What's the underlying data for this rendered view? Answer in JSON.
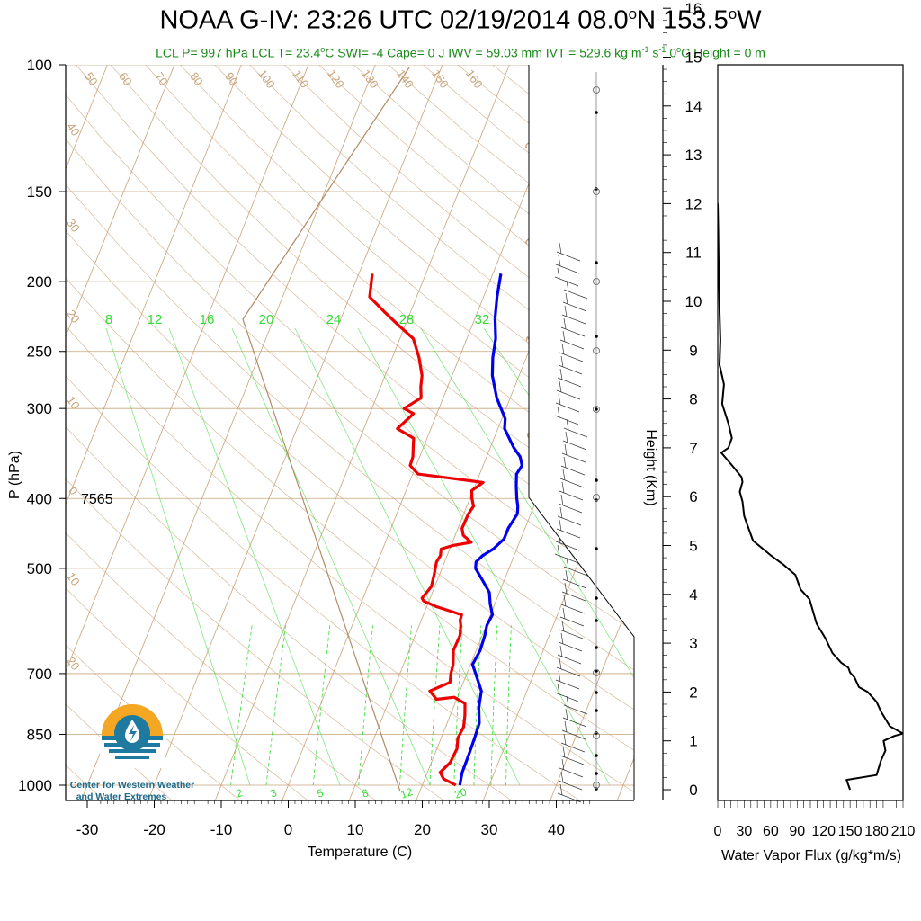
{
  "title_main": "NOAA G-IV: 23:26 UTC 02/19/2014  08.0",
  "title_deg1": "o",
  "title_lat": "N 153.5",
  "title_deg2": "o",
  "title_lon": "W",
  "subtitle": {
    "p1": "LCL P= 997 hPa  LCL T= 23.4",
    "deg1": "o",
    "p2": "C  SWI= -4  Cape= 0 J  IWV = 59.03 mm  IVT = 529.6 kg m",
    "sup1": "-1",
    "p3": " s",
    "sup2": "-1",
    "p4": "  0",
    "deg2": "o",
    "p5": "C Height = 0 m"
  },
  "colors": {
    "temperature": "#ee0000",
    "dewpoint": "#0000ee",
    "grid": "#c8a47a",
    "mixing": "#33dd33",
    "subtitle": "#1a8a1a"
  },
  "skewt": {
    "ylabel": "P (hPa)",
    "xlabel": "Temperature (C)",
    "pressure_ticks": [
      100,
      150,
      200,
      250,
      300,
      400,
      500,
      700,
      850,
      1000
    ],
    "temp_ticks": [
      -30,
      -20,
      -10,
      0,
      10,
      20,
      30,
      40
    ],
    "annotation": "7565",
    "mixing_ratio_labels": [
      "8",
      "12",
      "16",
      "20",
      "24",
      "28",
      "32"
    ],
    "mixing_ratio_labels_bottom": [
      "2",
      "3",
      "5",
      "8",
      "12",
      "20"
    ],
    "theta_labels_top": [
      "50",
      "60",
      "70",
      "80",
      "90",
      "100",
      "110",
      "120",
      "130",
      "140",
      "150",
      "160"
    ],
    "theta_labels_left": [
      "40",
      "30",
      "20",
      "10",
      "0",
      "10",
      "20"
    ],
    "isotherm_labels_right": [
      "30",
      "20",
      "10",
      "0",
      "10",
      "20",
      "30"
    ]
  },
  "chart_data": [
    {
      "type": "line",
      "title": "NOAA G-IV: 23:26 UTC 02/19/2014  08.0°N 153.5°W",
      "xlabel": "Temperature (C)",
      "ylabel": "P (hPa)",
      "yscale": "log",
      "xlim": [
        -35,
        50
      ],
      "ylim": [
        1000,
        100
      ],
      "series": [
        {
          "name": "Temperature",
          "color": "#ee0000",
          "x": [
            25.0,
            22.8,
            21.9,
            22.8,
            23.0,
            22.5,
            22.7,
            22.2,
            21.5,
            19.5,
            17.0,
            15.5,
            18.0,
            17.6,
            17.4,
            16.6,
            16.7,
            16.2,
            15.8,
            15.7,
            11.4,
            9.2,
            8.8,
            9.5,
            9.2,
            8.8,
            9.0,
            8.7,
            10.2,
            12.8,
            11.2,
            10.6,
            10.7,
            11.0,
            10.3,
            9.8,
            11.0,
            6.0,
            0.8,
            -0.9,
            -1.0,
            -1.5,
            -2.0,
            -5.0,
            -3.5,
            -5.2,
            -3.3,
            -4.0,
            -4.5,
            -6.0,
            -8.0,
            -11.0,
            -14.0,
            -17.0,
            -18.0
          ],
          "y": [
            1000,
            980,
            960,
            930,
            890,
            860,
            830,
            800,
            770,
            755,
            760,
            740,
            720,
            700,
            680,
            650,
            620,
            600,
            590,
            580,
            565,
            555,
            550,
            530,
            510,
            490,
            480,
            470,
            465,
            460,
            450,
            440,
            420,
            410,
            400,
            390,
            380,
            375,
            370,
            360,
            350,
            340,
            330,
            320,
            305,
            300,
            290,
            280,
            270,
            255,
            240,
            230,
            220,
            210,
            195
          ]
        },
        {
          "name": "Dewpoint",
          "color": "#0000ee",
          "x": [
            25.6,
            25.2,
            25.1,
            25.0,
            24.8,
            23.8,
            23.2,
            21.3,
            20.3,
            20.6,
            20.4,
            20.1,
            20.3,
            19.3,
            18.5,
            16.8,
            15.0,
            14.7,
            15.3,
            16.5,
            17.5,
            17.5,
            18.0,
            17.6,
            17.0,
            16.2,
            15.5,
            15.8,
            15.0,
            13.5,
            11.0,
            10.5,
            8.0,
            6.0,
            5.0,
            4.3,
            3.0,
            2.0,
            1.2
          ],
          "y": [
            1000,
            960,
            900,
            860,
            820,
            780,
            740,
            700,
            680,
            650,
            620,
            600,
            580,
            560,
            540,
            520,
            500,
            490,
            480,
            470,
            455,
            440,
            420,
            410,
            400,
            385,
            370,
            360,
            350,
            340,
            320,
            310,
            290,
            270,
            255,
            240,
            225,
            210,
            195
          ]
        }
      ]
    },
    {
      "type": "line",
      "xlabel": "Water Vapor Flux (g/kg*m/s)",
      "ylabel": "Height (Km)",
      "xlim": [
        0,
        210
      ],
      "ylim": [
        -0.3,
        16.5
      ],
      "x_ticks": [
        0,
        30,
        60,
        90,
        120,
        150,
        180,
        210
      ],
      "y_ticks": [
        0,
        1,
        2,
        3,
        4,
        5,
        6,
        7,
        8,
        9,
        10,
        11,
        12,
        13,
        14,
        15,
        16
      ],
      "series": [
        {
          "x": [
            150,
            146,
            180,
            185,
            190,
            188,
            200,
            210,
            195,
            185,
            180,
            170,
            160,
            155,
            150,
            148,
            140,
            130,
            122,
            112,
            104,
            94,
            88,
            75,
            60,
            40,
            30,
            28,
            25,
            28,
            27,
            18,
            4,
            12,
            16,
            12,
            5,
            7,
            2,
            3,
            2,
            1,
            0.5,
            0
          ],
          "y": [
            0.0,
            0.2,
            0.3,
            0.6,
            0.8,
            1.0,
            1.1,
            1.15,
            1.3,
            1.6,
            1.8,
            2.0,
            2.1,
            2.3,
            2.4,
            2.5,
            2.6,
            2.8,
            3.1,
            3.4,
            3.9,
            4.1,
            4.4,
            4.6,
            4.8,
            5.1,
            5.6,
            5.9,
            6.1,
            6.3,
            6.4,
            6.6,
            6.9,
            7.0,
            7.2,
            7.5,
            7.9,
            8.3,
            8.7,
            9.2,
            9.8,
            10.8,
            11.5,
            12.0
          ]
        }
      ]
    }
  ]
}
